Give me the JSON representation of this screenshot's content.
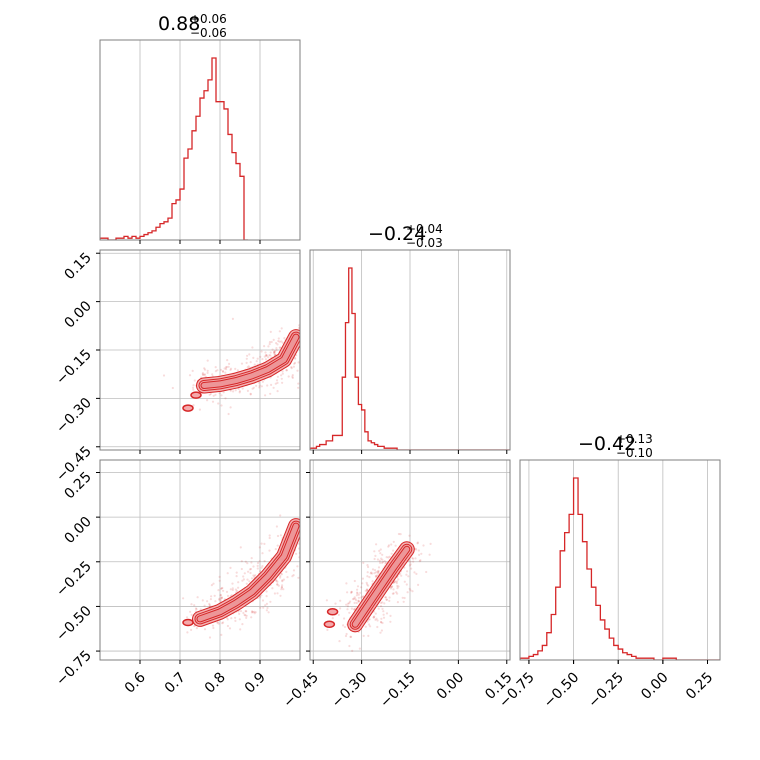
{
  "chart_data": {
    "type": "corner",
    "color": "#d62728",
    "grid": true,
    "params": [
      {
        "range": [
          0.5,
          1.0
        ],
        "ticks": [
          0.6,
          0.7,
          0.8,
          0.9
        ],
        "tick_labels": [
          "0.6",
          "0.7",
          "0.8",
          "0.9"
        ],
        "title_value": "0.88",
        "title_plus": "+0.06",
        "title_minus": "−0.06"
      },
      {
        "range": [
          -0.46,
          0.16
        ],
        "ticks": [
          -0.45,
          -0.3,
          -0.15,
          0.0,
          0.15
        ],
        "tick_labels": [
          "−0.45",
          "−0.30",
          "−0.15",
          "0.00",
          "0.15"
        ],
        "title_value": "−0.24",
        "title_plus": "+0.04",
        "title_minus": "−0.03"
      },
      {
        "range": [
          -0.8,
          0.32
        ],
        "ticks": [
          -0.75,
          -0.5,
          -0.25,
          0.0,
          0.25
        ],
        "tick_labels": [
          "−0.75",
          "−0.50",
          "−0.25",
          "0.00",
          "0.25"
        ],
        "title_value": "−0.42",
        "title_plus": "+0.13",
        "title_minus": "−0.10"
      }
    ],
    "histograms": [
      {
        "param": 0,
        "bin_start": 0.5,
        "bin_width": 0.01,
        "counts": [
          1,
          1,
          0,
          0,
          1,
          1,
          2,
          1,
          2,
          1,
          2,
          3,
          4,
          5,
          7,
          9,
          10,
          12,
          20,
          22,
          28,
          45,
          50,
          60,
          68,
          78,
          82,
          88,
          100,
          76,
          76,
          72,
          58,
          48,
          42,
          35,
          0
        ]
      },
      {
        "param": 1,
        "bin_start": -0.46,
        "bin_width": 0.01,
        "counts": [
          1,
          1,
          2,
          3,
          3,
          5,
          5,
          8,
          8,
          8,
          40,
          70,
          100,
          75,
          40,
          25,
          22,
          10,
          5,
          4,
          3,
          2,
          2,
          1,
          1,
          1,
          1,
          0,
          0,
          0,
          0,
          0,
          0,
          0,
          0,
          0,
          0,
          0,
          0,
          0,
          0,
          0,
          0,
          0,
          0,
          0,
          0,
          0,
          0,
          0,
          0,
          0,
          0,
          0,
          0,
          0,
          0,
          0,
          0,
          0,
          0,
          0
        ]
      },
      {
        "param": 2,
        "bin_start": -0.8,
        "bin_width": 0.025,
        "counts": [
          1,
          1,
          2,
          3,
          5,
          8,
          15,
          25,
          40,
          60,
          70,
          80,
          100,
          80,
          65,
          50,
          40,
          30,
          22,
          17,
          12,
          8,
          6,
          4,
          3,
          2,
          1,
          1,
          1,
          1,
          0,
          0,
          1,
          1,
          1,
          0,
          0,
          0,
          0,
          0,
          0,
          0,
          0,
          0,
          0
        ]
      }
    ],
    "pairs": [
      {
        "x_param": 0,
        "y_param": 1,
        "ridge": [
          [
            0.76,
            -0.26
          ],
          [
            0.8,
            -0.255
          ],
          [
            0.84,
            -0.245
          ],
          [
            0.88,
            -0.23
          ],
          [
            0.92,
            -0.21
          ],
          [
            0.96,
            -0.18
          ],
          [
            0.99,
            -0.11
          ]
        ],
        "islands": [
          [
            0.74,
            -0.29
          ],
          [
            0.72,
            -0.33
          ]
        ]
      },
      {
        "x_param": 0,
        "y_param": 2,
        "ridge": [
          [
            0.75,
            -0.57
          ],
          [
            0.8,
            -0.53
          ],
          [
            0.84,
            -0.48
          ],
          [
            0.88,
            -0.42
          ],
          [
            0.92,
            -0.33
          ],
          [
            0.96,
            -0.22
          ],
          [
            0.99,
            -0.05
          ]
        ],
        "islands": [
          [
            0.72,
            -0.59
          ]
        ]
      },
      {
        "x_param": 1,
        "y_param": 2,
        "ridge": [
          [
            -0.32,
            -0.6
          ],
          [
            -0.29,
            -0.52
          ],
          [
            -0.26,
            -0.44
          ],
          [
            -0.23,
            -0.36
          ],
          [
            -0.2,
            -0.28
          ],
          [
            -0.16,
            -0.18
          ]
        ],
        "islands": [
          [
            -0.39,
            -0.53
          ],
          [
            -0.4,
            -0.6
          ]
        ]
      }
    ]
  }
}
